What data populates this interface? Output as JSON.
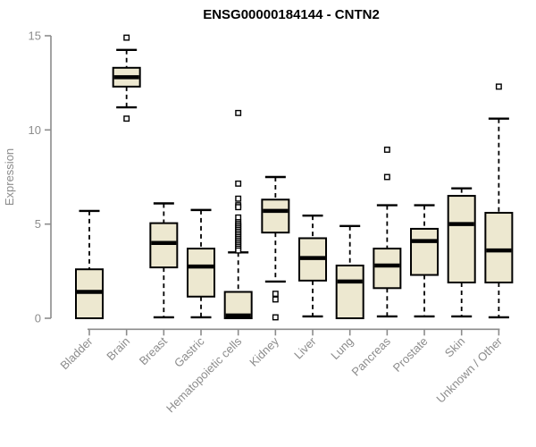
{
  "chart_data": {
    "type": "boxplot",
    "title": "ENSG00000184144 - CNTN2",
    "xlabel": "",
    "ylabel": "Expression",
    "ylim": [
      0,
      15
    ],
    "yticks": [
      0,
      5,
      10,
      15
    ],
    "grid": false,
    "legend": "none",
    "x_label_rotation": 45,
    "categories": [
      "Bladder",
      "Brain",
      "Breast",
      "Gastric",
      "Hematopoietic cells",
      "Kidney",
      "Liver",
      "Lung",
      "Pancreas",
      "Prostate",
      "Skin",
      "Unknown / Other"
    ],
    "boxes": [
      {
        "category": "Bladder",
        "low": 0.0,
        "q1": 0.0,
        "median": 1.4,
        "q3": 2.6,
        "high": 5.7,
        "outliers": []
      },
      {
        "category": "Brain",
        "low": 11.2,
        "q1": 12.3,
        "median": 12.8,
        "q3": 13.3,
        "high": 14.25,
        "outliers": [
          14.9,
          10.6
        ]
      },
      {
        "category": "Breast",
        "low": 0.05,
        "q1": 2.7,
        "median": 4.0,
        "q3": 5.05,
        "high": 6.1,
        "outliers": []
      },
      {
        "category": "Gastric",
        "low": 0.05,
        "q1": 1.15,
        "median": 2.75,
        "q3": 3.7,
        "high": 5.75,
        "outliers": []
      },
      {
        "category": "Hematopoietic cells",
        "low": 0.0,
        "q1": 0.0,
        "median": 0.15,
        "q3": 1.4,
        "high": 3.5,
        "outliers": [
          10.9,
          7.15,
          6.35,
          6.0,
          5.9,
          5.35,
          5.1,
          5.0,
          4.9,
          4.8,
          4.7,
          4.6,
          4.5,
          4.4,
          4.3,
          4.2,
          4.1,
          4.0,
          3.9,
          3.8,
          3.7,
          3.6
        ]
      },
      {
        "category": "Kidney",
        "low": 1.95,
        "q1": 4.55,
        "median": 5.7,
        "q3": 6.3,
        "high": 7.5,
        "outliers": [
          1.3,
          1.0,
          0.05
        ]
      },
      {
        "category": "Liver",
        "low": 0.1,
        "q1": 2.0,
        "median": 3.2,
        "q3": 4.25,
        "high": 5.45,
        "outliers": []
      },
      {
        "category": "Lung",
        "low": 0.0,
        "q1": 0.0,
        "median": 1.95,
        "q3": 2.8,
        "high": 4.9,
        "outliers": []
      },
      {
        "category": "Pancreas",
        "low": 0.1,
        "q1": 1.6,
        "median": 2.8,
        "q3": 3.7,
        "high": 6.0,
        "outliers": [
          8.95,
          7.5
        ]
      },
      {
        "category": "Prostate",
        "low": 0.1,
        "q1": 2.3,
        "median": 4.1,
        "q3": 4.75,
        "high": 6.0,
        "outliers": []
      },
      {
        "category": "Skin",
        "low": 0.1,
        "q1": 1.9,
        "median": 5.0,
        "q3": 6.5,
        "high": 6.9,
        "outliers": []
      },
      {
        "category": "Unknown / Other",
        "low": 0.05,
        "q1": 1.9,
        "median": 3.6,
        "q3": 5.6,
        "high": 10.6,
        "outliers": [
          12.3
        ]
      }
    ],
    "colors": {
      "box_fill": "#EDE8D0",
      "box_stroke": "#000000",
      "median": "#000000",
      "whisker": "#000000",
      "outlier_fill": "#FFFFFF",
      "outlier_stroke": "#000000",
      "axis": "#8C8C8C",
      "tick_label": "#8C8C8C",
      "title": "#000000",
      "background": "#FFFFFF"
    }
  }
}
